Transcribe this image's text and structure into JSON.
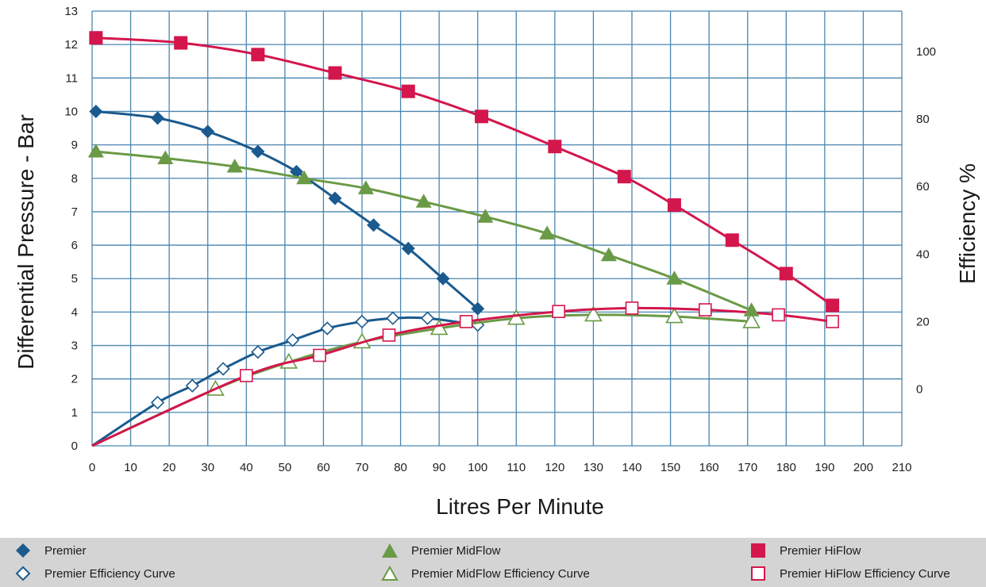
{
  "chart_data": {
    "type": "line",
    "xlabel": "Litres Per Minute",
    "ylabel": "Differential Pressure - Bar",
    "y2label": "Efficiency %",
    "xlim": [
      0,
      210
    ],
    "ylim": [
      0,
      13
    ],
    "y2lim": [
      -16.8,
      112
    ],
    "x_ticks": [
      "0",
      "10",
      "20",
      "30",
      "40",
      "50",
      "60",
      "70",
      "80",
      "90",
      "100",
      "110",
      "120",
      "130",
      "140",
      "150",
      "160",
      "170",
      "180",
      "190",
      "200",
      "210"
    ],
    "y_ticks": [
      "0",
      "1",
      "2",
      "3",
      "4",
      "5",
      "6",
      "7",
      "8",
      "9",
      "10",
      "11",
      "12",
      "13"
    ],
    "y2_ticks": [
      "0",
      "20",
      "40",
      "60",
      "80",
      "100"
    ],
    "grid": true,
    "legend_position": "bottom",
    "series": [
      {
        "name": "Premier",
        "axis": "left",
        "marker": "diamond",
        "filled": true,
        "color": "#1a5a8e",
        "x": [
          1,
          17,
          30,
          43,
          53,
          63,
          73,
          82,
          91,
          100
        ],
        "y": [
          10.0,
          9.8,
          9.4,
          8.8,
          8.2,
          7.4,
          6.6,
          5.9,
          5.0,
          4.1
        ]
      },
      {
        "name": "Premier MidFlow",
        "axis": "left",
        "marker": "triangle",
        "filled": true,
        "color": "#6a9a46",
        "x": [
          1,
          19,
          37,
          55,
          71,
          86,
          102,
          118,
          134,
          151,
          171
        ],
        "y": [
          8.8,
          8.6,
          8.35,
          8.0,
          7.7,
          7.3,
          6.85,
          6.35,
          5.7,
          5.0,
          4.05
        ]
      },
      {
        "name": "Premier HiFlow",
        "axis": "left",
        "marker": "square",
        "filled": true,
        "color": "#d3164c",
        "x": [
          1,
          23,
          43,
          63,
          82,
          101,
          120,
          138,
          151,
          166,
          180,
          192
        ],
        "y": [
          12.2,
          12.05,
          11.7,
          11.15,
          10.6,
          9.85,
          8.95,
          8.05,
          7.2,
          6.15,
          5.15,
          4.2
        ]
      },
      {
        "name": "Premier Efficiency Curve",
        "axis": "right",
        "marker": "diamond",
        "filled": false,
        "color": "#1a5a8e",
        "x": [
          0,
          17,
          26,
          34,
          43,
          52,
          61,
          70,
          78,
          87,
          100
        ],
        "y": [
          -16.8,
          -4,
          1,
          6,
          11,
          14.5,
          18,
          20,
          21,
          21,
          19
        ]
      },
      {
        "name": "Premier MidFlow Efficiency Curve",
        "axis": "right",
        "marker": "triangle",
        "filled": false,
        "color": "#6a9a46",
        "x": [
          0,
          32,
          51,
          70,
          90,
          110,
          130,
          151,
          171
        ],
        "y": [
          -16.8,
          0,
          8,
          14,
          18,
          21,
          22,
          21.5,
          20
        ]
      },
      {
        "name": "Premier HiFlow Efficiency Curve",
        "axis": "right",
        "marker": "square",
        "filled": false,
        "color": "#d3164c",
        "x": [
          0,
          40,
          59,
          77,
          97,
          121,
          140,
          159,
          178,
          192
        ],
        "y": [
          -16.8,
          4,
          10,
          16,
          20,
          23,
          24,
          23.5,
          22,
          20
        ]
      }
    ]
  },
  "legend": {
    "items": [
      {
        "label": "Premier",
        "marker": "diamond",
        "filled": true,
        "color": "#1a5a8e"
      },
      {
        "label": "Premier MidFlow",
        "marker": "triangle",
        "filled": true,
        "color": "#6a9a46"
      },
      {
        "label": "Premier HiFlow",
        "marker": "square",
        "filled": true,
        "color": "#d3164c"
      },
      {
        "label": "Premier Efficiency Curve",
        "marker": "diamond",
        "filled": false,
        "color": "#1a5a8e"
      },
      {
        "label": "Premier MidFlow Efficiency Curve",
        "marker": "triangle",
        "filled": false,
        "color": "#6a9a46"
      },
      {
        "label": "Premier HiFlow Efficiency Curve",
        "marker": "square",
        "filled": false,
        "color": "#d3164c"
      }
    ]
  },
  "colors": {
    "grid": "#4a86b0",
    "legend_background": "#d4d4d4"
  }
}
